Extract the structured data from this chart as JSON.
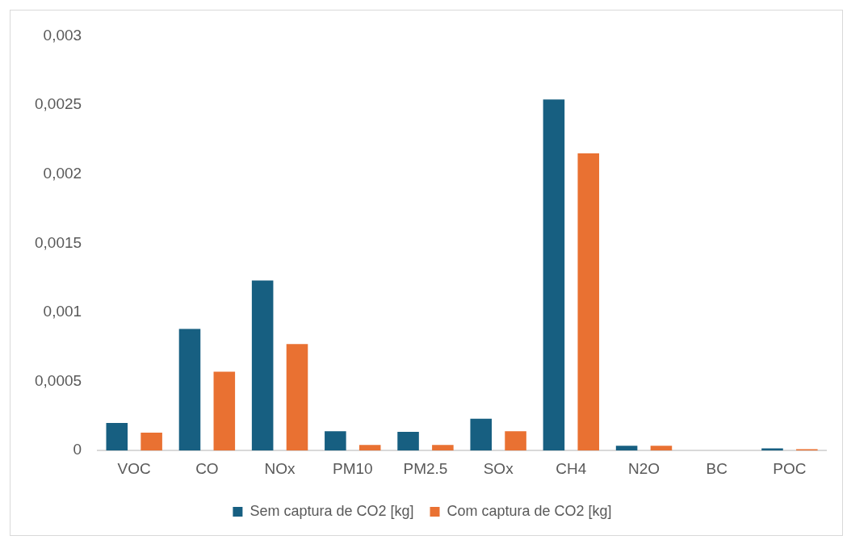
{
  "chart_data": {
    "type": "bar",
    "categories": [
      "VOC",
      "CO",
      "NOx",
      "PM10",
      "PM2.5",
      "SOx",
      "CH4",
      "N2O",
      "BC",
      "POC"
    ],
    "series": [
      {
        "name": "Sem captura de CO2 [kg]",
        "color": "#175f81",
        "values": [
          0.0002,
          0.00088,
          0.00123,
          0.00014,
          0.000135,
          0.00023,
          0.00254,
          3.5e-05,
          null,
          1.6e-05
        ]
      },
      {
        "name": "Com captura de CO2 [kg]",
        "color": "#e97132",
        "values": [
          0.00013,
          0.00057,
          0.00077,
          4e-05,
          4e-05,
          0.00014,
          0.00215,
          3.5e-05,
          null,
          1e-05
        ]
      }
    ],
    "ylim": [
      0,
      0.003
    ],
    "yticks": [
      {
        "value": 0,
        "label": "0"
      },
      {
        "value": 0.0005,
        "label": "0,0005"
      },
      {
        "value": 0.001,
        "label": "0,001"
      },
      {
        "value": 0.0015,
        "label": "0,0015"
      },
      {
        "value": 0.002,
        "label": "0,002"
      },
      {
        "value": 0.0025,
        "label": "0,0025"
      },
      {
        "value": 0.003,
        "label": "0,003"
      }
    ],
    "grid": false,
    "legend": "bottom"
  }
}
